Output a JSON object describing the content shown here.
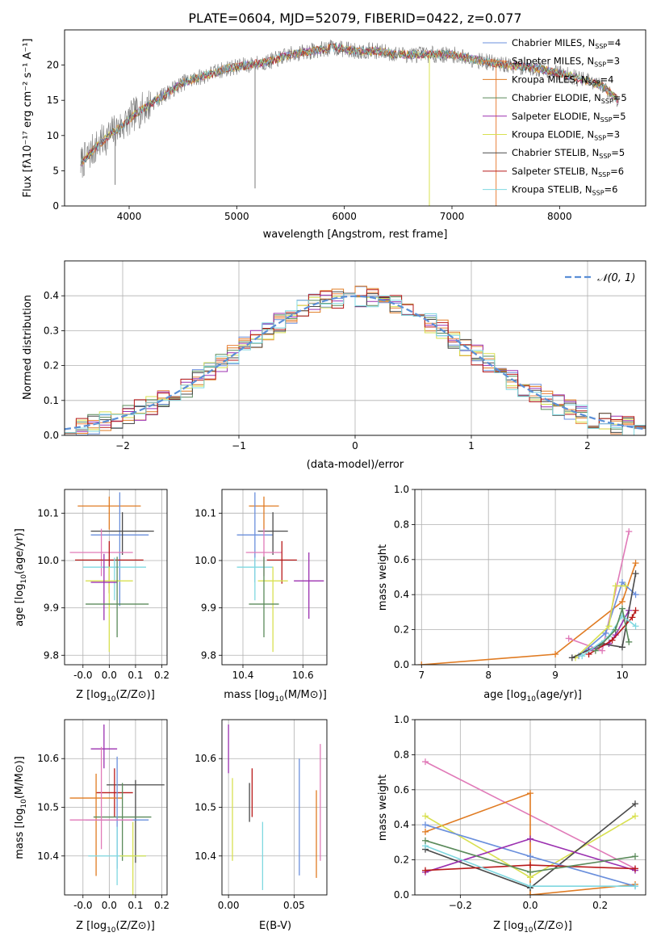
{
  "figure_title": "PLATE=0604, MJD=52079, FIBERID=0422, z=0.077",
  "colors": {
    "chabrier_miles": "#6a8fdc",
    "salpeter_miles": "#e8803a",
    "kroupa_miles": "#e07b22",
    "chabrier_elodie": "#5a8a5a",
    "salpeter_elodie": "#9b30b0",
    "kroupa_elodie": "#d8e050",
    "chabrier_stelib": "#4a4a4a",
    "salpeter_stelib": "#b81a1a",
    "kroupa_stelib": "#7fd8e0",
    "pink": "#e07ab8",
    "data": "#7a7a7a"
  },
  "chart_data": [
    {
      "id": "spectrum",
      "type": "line",
      "title": "PLATE=0604, MJD=52079, FIBERID=0422, z=0.077",
      "xlabel": "wavelength [Angstrom, rest frame]",
      "ylabel": "Flux [fλ10⁻¹⁷ erg cm⁻² s⁻¹ A⁻¹]",
      "xlim": [
        3400,
        8800
      ],
      "ylim": [
        0,
        25
      ],
      "xticks": [
        4000,
        5000,
        6000,
        7000,
        8000
      ],
      "yticks": [
        0,
        5,
        10,
        15,
        20
      ],
      "grid": false,
      "legend_position": "upper-right",
      "continuum": {
        "x": [
          3550,
          3700,
          3850,
          3950,
          4050,
          4200,
          4350,
          4500,
          4700,
          4900,
          5100,
          5300,
          5500,
          5700,
          5900,
          6100,
          6300,
          6500,
          6700,
          7000,
          7300,
          7500,
          7800,
          8100,
          8400,
          8550
        ],
        "y": [
          6,
          8.5,
          10.5,
          11.5,
          13,
          14.5,
          16,
          17.5,
          18.5,
          19.5,
          20,
          20.5,
          21.5,
          22,
          22.5,
          22,
          22,
          21.5,
          21.5,
          21.5,
          20.5,
          20,
          19.5,
          18.5,
          17,
          15
        ]
      },
      "series": [
        {
          "name": "Chabrier MILES, N_SSP=4",
          "label_main": "Chabrier MILES, N",
          "label_sub": "SSP",
          "label_end": "=4",
          "color_key": "chabrier_miles"
        },
        {
          "name": "Salpeter MILES, N_SSP=3",
          "label_main": "Salpeter MILES, N",
          "label_sub": "SSP",
          "label_end": "=3",
          "color_key": "salpeter_miles"
        },
        {
          "name": "Kroupa MILES, N_SSP=4",
          "label_main": "Kroupa MILES, N",
          "label_sub": "SSP",
          "label_end": "=4",
          "color_key": "kroupa_miles"
        },
        {
          "name": "Chabrier ELODIE, N_SSP=5",
          "label_main": "Chabrier ELODIE, N",
          "label_sub": "SSP",
          "label_end": "=5",
          "color_key": "chabrier_elodie"
        },
        {
          "name": "Salpeter ELODIE, N_SSP=5",
          "label_main": "Salpeter ELODIE, N",
          "label_sub": "SSP",
          "label_end": "=5",
          "color_key": "salpeter_elodie"
        },
        {
          "name": "Kroupa ELODIE, N_SSP=3",
          "label_main": "Kroupa ELODIE, N",
          "label_sub": "SSP",
          "label_end": "=3",
          "color_key": "kroupa_elodie"
        },
        {
          "name": "Chabrier STELIB, N_SSP=5",
          "label_main": "Chabrier STELIB, N",
          "label_sub": "SSP",
          "label_end": "=5",
          "color_key": "chabrier_stelib"
        },
        {
          "name": "Salpeter STELIB, N_SSP=6",
          "label_main": "Salpeter STELIB, N",
          "label_sub": "SSP",
          "label_end": "=6",
          "color_key": "salpeter_stelib"
        },
        {
          "name": "Kroupa STELIB, N_SSP=6",
          "label_main": "Kroupa STELIB, N",
          "label_sub": "SSP",
          "label_end": "=6",
          "color_key": "kroupa_stelib"
        }
      ]
    },
    {
      "id": "residuals",
      "type": "line",
      "xlabel": "(data-model)/error",
      "ylabel": "Normed distribution",
      "xlim": [
        -2.5,
        2.5
      ],
      "ylim": [
        0,
        0.5
      ],
      "xticks": [
        -2,
        -1,
        0,
        1,
        2
      ],
      "yticks": [
        0.0,
        0.1,
        0.2,
        0.3,
        0.4
      ],
      "grid": true,
      "legend_position": "upper-right",
      "legend_label": "𝒩(0, 1)",
      "bin_width": 0.1
    },
    {
      "id": "age_vs_Z",
      "type": "scatter",
      "xlabel_main": "Z [log",
      "xlabel_sub": "10",
      "xlabel_end": "(Z/Z⊙)]",
      "ylabel_main": "age  [log",
      "ylabel_sub": "10",
      "ylabel_end": "(age/yr)]",
      "xlim": [
        -0.17,
        0.22
      ],
      "ylim": [
        9.78,
        10.15
      ],
      "xticks": [
        "-0.0",
        "0.0",
        "0.1",
        "0.2"
      ],
      "xtick_values": [
        -0.1,
        0.0,
        0.1,
        0.2
      ],
      "yticks": [
        "9.8",
        "9.9",
        "10.0",
        "10.1"
      ],
      "ytick_values": [
        9.8,
        9.9,
        10.0,
        10.1
      ],
      "grid": true,
      "points": [
        {
          "x": 0.0,
          "y": 10.115,
          "xerr": 0.12,
          "yerr_lo": 0.05,
          "yerr_hi": 0.02,
          "color_key": "kroupa_miles"
        },
        {
          "x": 0.04,
          "y": 10.054,
          "xerr": 0.11,
          "yerr_lo": 0.15,
          "yerr_hi": 0.09,
          "color_key": "chabrier_miles"
        },
        {
          "x": 0.05,
          "y": 10.062,
          "xerr": 0.12,
          "yerr_lo": 0.05,
          "yerr_hi": 0.04,
          "color_key": "chabrier_stelib"
        },
        {
          "x": -0.03,
          "y": 10.017,
          "xerr": 0.12,
          "yerr_lo": 0.05,
          "yerr_hi": 0.05,
          "color_key": "pink"
        },
        {
          "x": 0.0,
          "y": 10.001,
          "xerr": 0.13,
          "yerr_lo": 0.07,
          "yerr_hi": 0.04,
          "color_key": "salpeter_stelib"
        },
        {
          "x": 0.02,
          "y": 9.986,
          "xerr": 0.12,
          "yerr_lo": 0.07,
          "yerr_hi": 0.02,
          "color_key": "kroupa_stelib"
        },
        {
          "x": 0.0,
          "y": 9.957,
          "xerr": 0.09,
          "yerr_lo": 0.15,
          "yerr_hi": 0.03,
          "color_key": "kroupa_elodie"
        },
        {
          "x": -0.02,
          "y": 9.954,
          "xerr": 0.05,
          "yerr_lo": 0.08,
          "yerr_hi": 0.06,
          "color_key": "salpeter_elodie"
        },
        {
          "x": 0.03,
          "y": 9.908,
          "xerr": 0.12,
          "yerr_lo": 0.07,
          "yerr_hi": 0.1,
          "color_key": "chabrier_elodie"
        }
      ]
    },
    {
      "id": "age_vs_mass",
      "type": "scatter",
      "xlabel_main": "mass [log",
      "xlabel_sub": "10",
      "xlabel_end": "(M/M⊙)]",
      "xlim": [
        10.33,
        10.68
      ],
      "ylim": [
        9.78,
        10.15
      ],
      "xticks": [
        "10.4",
        "10.6"
      ],
      "xtick_values": [
        10.4,
        10.6
      ],
      "yticks": [
        "9.8",
        "9.9",
        "10.0",
        "10.1"
      ],
      "ytick_values": [
        9.8,
        9.9,
        10.0,
        10.1
      ],
      "grid": true,
      "points": [
        {
          "x": 10.47,
          "y": 10.115,
          "xerr": 0.05,
          "yerr_lo": 0.05,
          "yerr_hi": 0.02,
          "color_key": "kroupa_miles"
        },
        {
          "x": 10.44,
          "y": 10.054,
          "xerr": 0.06,
          "yerr_lo": 0.1,
          "yerr_hi": 0.09,
          "color_key": "chabrier_miles"
        },
        {
          "x": 10.5,
          "y": 10.062,
          "xerr": 0.05,
          "yerr_lo": 0.05,
          "yerr_hi": 0.04,
          "color_key": "chabrier_stelib"
        },
        {
          "x": 10.47,
          "y": 10.017,
          "xerr": 0.06,
          "yerr_lo": 0.05,
          "yerr_hi": 0.05,
          "color_key": "pink"
        },
        {
          "x": 10.53,
          "y": 10.001,
          "xerr": 0.05,
          "yerr_lo": 0.05,
          "yerr_hi": 0.04,
          "color_key": "salpeter_stelib"
        },
        {
          "x": 10.44,
          "y": 9.986,
          "xerr": 0.06,
          "yerr_lo": 0.07,
          "yerr_hi": 0.02,
          "color_key": "kroupa_stelib"
        },
        {
          "x": 10.5,
          "y": 9.957,
          "xerr": 0.05,
          "yerr_lo": 0.15,
          "yerr_hi": 0.03,
          "color_key": "kroupa_elodie"
        },
        {
          "x": 10.62,
          "y": 9.957,
          "xerr": 0.05,
          "yerr_lo": 0.08,
          "yerr_hi": 0.06,
          "color_key": "salpeter_elodie"
        },
        {
          "x": 10.47,
          "y": 9.908,
          "xerr": 0.05,
          "yerr_lo": 0.07,
          "yerr_hi": 0.1,
          "color_key": "chabrier_elodie"
        }
      ]
    },
    {
      "id": "massweight_vs_age",
      "type": "line",
      "xlabel_main": "age  [log",
      "xlabel_sub": "10",
      "xlabel_end": "(age/yr)]",
      "ylabel": "mass weight",
      "xlim": [
        6.9,
        10.35
      ],
      "ylim": [
        0,
        1
      ],
      "xticks": [
        7,
        8,
        9,
        10
      ],
      "yticks": [
        "0.0",
        "0.2",
        "0.4",
        "0.6",
        "0.8",
        "1.0"
      ],
      "ytick_values": [
        0.0,
        0.2,
        0.4,
        0.6,
        0.8,
        1.0
      ],
      "grid": true,
      "series": [
        {
          "color_key": "kroupa_miles",
          "x": [
            7.0,
            9.0,
            10.0,
            10.2
          ],
          "y": [
            0.0,
            0.06,
            0.36,
            0.58
          ]
        },
        {
          "color_key": "pink",
          "x": [
            9.2,
            9.7,
            10.1
          ],
          "y": [
            0.15,
            0.08,
            0.76
          ]
        },
        {
          "color_key": "chabrier_miles",
          "x": [
            9.35,
            9.75,
            10.0,
            10.2
          ],
          "y": [
            0.05,
            0.18,
            0.47,
            0.4
          ]
        },
        {
          "color_key": "kroupa_elodie",
          "x": [
            9.3,
            9.8,
            9.9,
            10.05
          ],
          "y": [
            0.04,
            0.22,
            0.45,
            0.45
          ]
        },
        {
          "color_key": "salpeter_elodie",
          "x": [
            9.5,
            9.8,
            9.9,
            10.1
          ],
          "y": [
            0.08,
            0.12,
            0.17,
            0.31
          ]
        },
        {
          "color_key": "chabrier_stelib",
          "x": [
            9.25,
            9.7,
            10.0,
            10.2
          ],
          "y": [
            0.04,
            0.12,
            0.1,
            0.52
          ]
        },
        {
          "color_key": "salpeter_stelib",
          "x": [
            9.5,
            9.85,
            10.15,
            10.2
          ],
          "y": [
            0.06,
            0.14,
            0.27,
            0.31
          ]
        },
        {
          "color_key": "kroupa_stelib",
          "x": [
            9.4,
            9.8,
            10.0,
            10.2
          ],
          "y": [
            0.05,
            0.16,
            0.28,
            0.22
          ]
        },
        {
          "color_key": "chabrier_elodie",
          "x": [
            9.6,
            9.9,
            10.0,
            10.1
          ],
          "y": [
            0.08,
            0.2,
            0.32,
            0.13
          ]
        }
      ]
    },
    {
      "id": "mass_vs_Z",
      "type": "scatter",
      "xlabel_main": "Z [log",
      "xlabel_sub": "10",
      "xlabel_end": "(Z/Z⊙)]",
      "ylabel_main": "mass [log",
      "ylabel_sub": "10",
      "ylabel_end": "(M/M⊙)]",
      "xlim": [
        -0.17,
        0.22
      ],
      "ylim": [
        10.32,
        10.68
      ],
      "xticks": [
        "-0.0",
        "0.0",
        "0.1",
        "0.2"
      ],
      "xtick_values": [
        -0.1,
        0.0,
        0.1,
        0.2
      ],
      "yticks": [
        "10.4",
        "10.5",
        "10.6"
      ],
      "ytick_values": [
        10.4,
        10.5,
        10.6
      ],
      "grid": true,
      "points": [
        {
          "x": -0.02,
          "y": 10.62,
          "xerr": 0.05,
          "yerr_lo": 0.04,
          "yerr_hi": 0.05,
          "color_key": "salpeter_elodie"
        },
        {
          "x": 0.1,
          "y": 10.546,
          "xerr": 0.11,
          "yerr_lo": 0.16,
          "yerr_hi": 0.01,
          "color_key": "chabrier_stelib"
        },
        {
          "x": 0.02,
          "y": 10.53,
          "xerr": 0.07,
          "yerr_lo": 0.05,
          "yerr_hi": 0.05,
          "color_key": "salpeter_stelib"
        },
        {
          "x": -0.05,
          "y": 10.519,
          "xerr": 0.1,
          "yerr_lo": 0.16,
          "yerr_hi": 0.05,
          "color_key": "kroupa_miles"
        },
        {
          "x": 0.05,
          "y": 10.48,
          "xerr": 0.11,
          "yerr_lo": 0.09,
          "yerr_hi": 0.07,
          "color_key": "chabrier_elodie"
        },
        {
          "x": 0.03,
          "y": 10.474,
          "xerr": 0.12,
          "yerr_lo": 0.1,
          "yerr_hi": 0.13,
          "color_key": "chabrier_miles"
        },
        {
          "x": -0.03,
          "y": 10.474,
          "xerr": 0.12,
          "yerr_lo": 0.06,
          "yerr_hi": 0.15,
          "color_key": "pink"
        },
        {
          "x": 0.03,
          "y": 10.4,
          "xerr": 0.11,
          "yerr_lo": 0.06,
          "yerr_hi": 0.06,
          "color_key": "kroupa_stelib"
        },
        {
          "x": 0.09,
          "y": 10.4,
          "xerr": 0.05,
          "yerr_lo": 0.08,
          "yerr_hi": 0.07,
          "color_key": "kroupa_elodie"
        }
      ]
    },
    {
      "id": "mass_vs_ebv",
      "type": "scatter",
      "xlabel": "E(B-V)",
      "xlim": [
        -0.005,
        0.075
      ],
      "ylim": [
        10.32,
        10.68
      ],
      "xticks": [
        "0.00",
        "0.05"
      ],
      "xtick_values": [
        0.0,
        0.05
      ],
      "yticks": [
        "10.4",
        "10.5",
        "10.6"
      ],
      "ytick_values": [
        10.4,
        10.5,
        10.6
      ],
      "grid": true,
      "points": [
        {
          "x": 0.0,
          "y": 10.62,
          "yerr_lo": 0.05,
          "yerr_hi": 0.05,
          "color_key": "salpeter_elodie"
        },
        {
          "x": 0.003,
          "y": 10.47,
          "yerr_lo": 0.08,
          "yerr_hi": 0.09,
          "color_key": "kroupa_elodie"
        },
        {
          "x": 0.016,
          "y": 10.52,
          "yerr_lo": 0.05,
          "yerr_hi": 0.03,
          "color_key": "chabrier_stelib"
        },
        {
          "x": 0.018,
          "y": 10.53,
          "yerr_lo": 0.05,
          "yerr_hi": 0.05,
          "color_key": "salpeter_stelib"
        },
        {
          "x": 0.026,
          "y": 10.4,
          "yerr_lo": 0.07,
          "yerr_hi": 0.07,
          "color_key": "kroupa_stelib"
        },
        {
          "x": 0.054,
          "y": 10.48,
          "yerr_lo": 0.12,
          "yerr_hi": 0.12,
          "color_key": "chabrier_miles"
        },
        {
          "x": 0.067,
          "y": 10.445,
          "yerr_lo": 0.09,
          "yerr_hi": 0.09,
          "color_key": "kroupa_miles"
        },
        {
          "x": 0.07,
          "y": 10.51,
          "yerr_lo": 0.12,
          "yerr_hi": 0.12,
          "color_key": "pink"
        }
      ]
    },
    {
      "id": "massweight_vs_Z",
      "type": "line",
      "xlabel_main": "Z [log",
      "xlabel_sub": "10",
      "xlabel_end": "(Z/Z⊙)]",
      "ylabel": "mass weight",
      "xlim": [
        -0.33,
        0.33
      ],
      "ylim": [
        0,
        1
      ],
      "xticks": [
        "−0.2",
        "0.0",
        "0.2"
      ],
      "xtick_values": [
        -0.2,
        0.0,
        0.2
      ],
      "yticks": [
        "0.0",
        "0.2",
        "0.4",
        "0.6",
        "0.8",
        "1.0"
      ],
      "ytick_values": [
        0.0,
        0.2,
        0.4,
        0.6,
        0.8,
        1.0
      ],
      "grid": true,
      "series": [
        {
          "color_key": "pink",
          "x": [
            -0.3,
            0.3
          ],
          "y": [
            0.76,
            0.15
          ]
        },
        {
          "color_key": "kroupa_miles",
          "x": [
            -0.3,
            0.0,
            0.0,
            0.3
          ],
          "y": [
            0.36,
            0.58,
            0.0,
            0.06
          ]
        },
        {
          "color_key": "kroupa_elodie",
          "x": [
            -0.3,
            0.0,
            0.3
          ],
          "y": [
            0.45,
            0.1,
            0.45
          ]
        },
        {
          "color_key": "chabrier_stelib",
          "x": [
            -0.3,
            0.0,
            0.3
          ],
          "y": [
            0.26,
            0.04,
            0.52
          ]
        },
        {
          "color_key": "chabrier_miles",
          "x": [
            -0.3,
            0.0,
            0.3
          ],
          "y": [
            0.4,
            0.22,
            0.05
          ]
        },
        {
          "color_key": "salpeter_elodie",
          "x": [
            -0.3,
            0.0,
            0.3
          ],
          "y": [
            0.13,
            0.32,
            0.14
          ]
        },
        {
          "color_key": "salpeter_stelib",
          "x": [
            -0.3,
            0.0,
            0.3
          ],
          "y": [
            0.14,
            0.17,
            0.15
          ]
        },
        {
          "color_key": "kroupa_stelib",
          "x": [
            -0.3,
            0.0,
            0.3
          ],
          "y": [
            0.28,
            0.05,
            0.05
          ]
        },
        {
          "color_key": "chabrier_elodie",
          "x": [
            -0.3,
            0.0,
            0.3
          ],
          "y": [
            0.31,
            0.13,
            0.22
          ]
        }
      ]
    }
  ]
}
